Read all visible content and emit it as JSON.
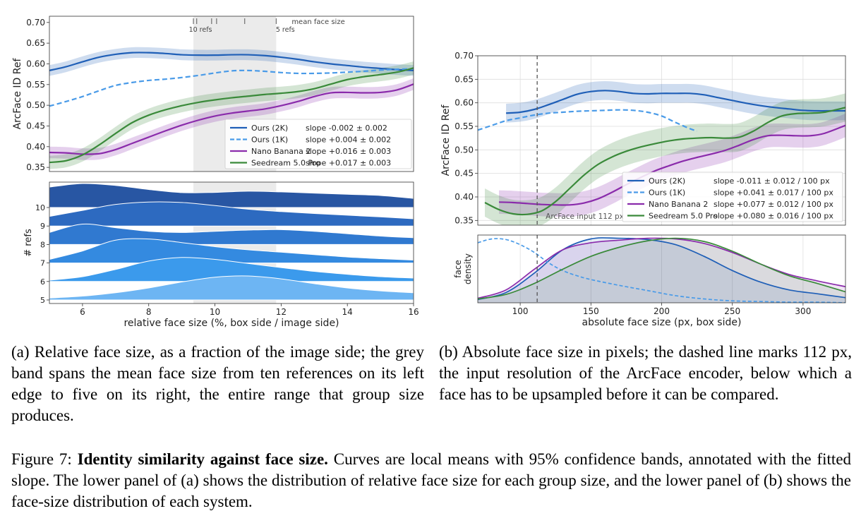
{
  "captions": {
    "a": "(a) Relative face size, as a fraction of the image side; the grey band spans the mean face size from ten references on its left edge to five on its right, the entire range that group size produces.",
    "b": "(b) Absolute face size in pixels; the dashed line marks 112 px, the input resolution of the ArcFace encoder, below which a face has to be upsampled before it can be compared.",
    "figure_label": "Figure 7:",
    "figure_title": "Identity similarity against face size.",
    "figure_text": "Curves are local means with 95% confidence bands, annotated with the fitted slope. The lower panel of (a) shows the distribution of relative face size for each group size, and the lower panel of (b) shows the face-size distribution of each system."
  },
  "chart_data": [
    {
      "id": "a-top",
      "type": "line",
      "ylabel": "ArcFace ID Ref",
      "xlim": [
        5,
        16
      ],
      "ylim": [
        0.34,
        0.715
      ],
      "yticks": [
        0.35,
        0.4,
        0.45,
        0.5,
        0.55,
        0.6,
        0.65,
        0.7
      ],
      "band": {
        "x": [
          9.35,
          11.85
        ],
        "color": "#ebebeb"
      },
      "mean_face_size": {
        "label": "mean face size",
        "left_label": "10 refs",
        "right_label": "5 refs",
        "ticks": [
          9.35,
          9.45,
          9.9,
          10.05,
          10.9,
          11.85
        ]
      },
      "legend_position": "lower-right",
      "series": [
        {
          "name": "Ours (2K)",
          "slope": "slope -0.002 ± 0.002",
          "color": "#1f5fb7",
          "dash": false,
          "ci": 0.013,
          "x": [
            5,
            5.5,
            6,
            6.5,
            7,
            7.5,
            8,
            8.5,
            9,
            9.5,
            10,
            10.5,
            11,
            11.5,
            12,
            12.5,
            13,
            13.5,
            14,
            14.5,
            15,
            15.5,
            16
          ],
          "y": [
            0.584,
            0.593,
            0.605,
            0.616,
            0.623,
            0.627,
            0.627,
            0.625,
            0.622,
            0.621,
            0.621,
            0.622,
            0.622,
            0.62,
            0.616,
            0.611,
            0.605,
            0.6,
            0.596,
            0.592,
            0.589,
            0.586,
            0.584
          ]
        },
        {
          "name": "Ours (1K)",
          "slope": "slope +0.004 ± 0.002",
          "color": "#4a9be8",
          "dash": true,
          "ci": 0,
          "x": [
            5,
            5.5,
            6,
            6.5,
            7,
            7.5,
            8,
            8.5,
            9,
            9.5,
            10,
            10.5,
            11,
            11.5,
            12,
            12.5,
            13,
            13.5,
            14,
            14.5,
            15,
            15.5,
            16
          ],
          "y": [
            0.498,
            0.509,
            0.521,
            0.535,
            0.548,
            0.555,
            0.56,
            0.563,
            0.567,
            0.572,
            0.578,
            0.583,
            0.584,
            0.582,
            0.579,
            0.577,
            0.577,
            0.578,
            0.58,
            0.582,
            0.585,
            0.587,
            0.588
          ]
        },
        {
          "name": "Nano Banana 2",
          "slope": "slope +0.016 ± 0.003",
          "color": "#8a2bab",
          "dash": false,
          "ci": 0.014,
          "x": [
            5,
            5.5,
            6,
            6.5,
            7,
            7.5,
            8,
            8.5,
            9,
            9.5,
            10,
            10.5,
            11,
            11.5,
            12,
            12.5,
            13,
            13.5,
            14,
            14.5,
            15,
            15.5,
            16
          ],
          "y": [
            0.386,
            0.385,
            0.382,
            0.383,
            0.393,
            0.408,
            0.423,
            0.438,
            0.452,
            0.464,
            0.474,
            0.481,
            0.486,
            0.491,
            0.499,
            0.509,
            0.521,
            0.53,
            0.531,
            0.53,
            0.531,
            0.537,
            0.551
          ]
        },
        {
          "name": "Seedream 5.0 Pro",
          "slope": "slope +0.017 ± 0.003",
          "color": "#3a8a3a",
          "dash": false,
          "ci": 0.016,
          "x": [
            5,
            5.5,
            6,
            6.5,
            7,
            7.5,
            8,
            8.5,
            9,
            9.5,
            10,
            10.5,
            11,
            11.5,
            12,
            12.5,
            13,
            13.5,
            14,
            14.5,
            15,
            15.5,
            16
          ],
          "y": [
            0.362,
            0.366,
            0.38,
            0.404,
            0.432,
            0.458,
            0.476,
            0.489,
            0.499,
            0.507,
            0.513,
            0.518,
            0.522,
            0.526,
            0.529,
            0.533,
            0.54,
            0.551,
            0.562,
            0.569,
            0.574,
            0.58,
            0.59
          ]
        }
      ]
    },
    {
      "id": "a-bottom",
      "type": "area",
      "ylabel": "# refs",
      "xlabel": "relative face size (%, box side / image side)",
      "xlim": [
        5,
        16
      ],
      "xticks": [
        6,
        8,
        10,
        12,
        14,
        16
      ],
      "band": {
        "x": [
          9.35,
          11.85
        ],
        "color": "#ebebeb"
      },
      "rows": [
        {
          "label": "10",
          "color": "#2856a3",
          "x": [
            5,
            6,
            7,
            8,
            9,
            10,
            11,
            12,
            13,
            14,
            15,
            16
          ],
          "y": [
            0.85,
            1.0,
            0.92,
            0.75,
            0.62,
            0.63,
            0.68,
            0.65,
            0.6,
            0.55,
            0.5,
            0.38
          ]
        },
        {
          "label": "9",
          "color": "#2d6ac0",
          "x": [
            5,
            6,
            7,
            8,
            9,
            10,
            11,
            12,
            13,
            14,
            15,
            16
          ],
          "y": [
            0.4,
            0.65,
            0.9,
            1.0,
            0.98,
            0.85,
            0.7,
            0.6,
            0.52,
            0.45,
            0.38,
            0.3
          ]
        },
        {
          "label": "8",
          "color": "#3079d0",
          "x": [
            5,
            6,
            7,
            8,
            9,
            10,
            11,
            12,
            13,
            14,
            15,
            16
          ],
          "y": [
            0.5,
            0.85,
            0.7,
            0.55,
            0.5,
            0.55,
            0.6,
            0.62,
            0.55,
            0.45,
            0.35,
            0.28
          ]
        },
        {
          "label": "7",
          "color": "#348ae0",
          "x": [
            5,
            6,
            7,
            8,
            9,
            10,
            11,
            12,
            13,
            14,
            15,
            16
          ],
          "y": [
            0.15,
            0.5,
            0.95,
            1.0,
            0.85,
            0.68,
            0.55,
            0.45,
            0.35,
            0.25,
            0.18,
            0.12
          ]
        },
        {
          "label": "6",
          "color": "#3b9aec",
          "x": [
            5,
            6,
            7,
            8,
            9,
            10,
            11,
            12,
            13,
            14,
            15,
            16
          ],
          "y": [
            0.05,
            0.2,
            0.5,
            0.85,
            1.0,
            0.92,
            0.75,
            0.58,
            0.42,
            0.3,
            0.2,
            0.14
          ]
        },
        {
          "label": "5",
          "color": "#6db5f3",
          "x": [
            5,
            6,
            7,
            8,
            9,
            10,
            11,
            12,
            13,
            14,
            15,
            16
          ],
          "y": [
            0.08,
            0.16,
            0.3,
            0.5,
            0.75,
            0.95,
            1.0,
            0.88,
            0.68,
            0.5,
            0.38,
            0.3
          ]
        }
      ]
    },
    {
      "id": "b-top",
      "type": "line",
      "ylabel": "ArcFace ID Ref",
      "xlim": [
        70,
        330
      ],
      "ylim": [
        0.34,
        0.7
      ],
      "yticks": [
        0.35,
        0.4,
        0.45,
        0.5,
        0.55,
        0.6,
        0.65,
        0.7
      ],
      "grid": true,
      "vline": {
        "x": 112,
        "label": "ArcFace input 112 px"
      },
      "legend_position": "lower-right",
      "series": [
        {
          "name": "Ours (2K)",
          "slope": "slope -0.011 ± 0.012 / 100 px",
          "color": "#1f5fb7",
          "dash": false,
          "ci": 0.02,
          "x": [
            90,
            100,
            110,
            120,
            130,
            140,
            150,
            160,
            170,
            180,
            190,
            200,
            210,
            220,
            230,
            240,
            250,
            260,
            270,
            280,
            290,
            300,
            310,
            320,
            330
          ],
          "y": [
            0.578,
            0.58,
            0.586,
            0.596,
            0.607,
            0.618,
            0.624,
            0.626,
            0.624,
            0.62,
            0.619,
            0.62,
            0.62,
            0.62,
            0.617,
            0.611,
            0.605,
            0.599,
            0.594,
            0.59,
            0.587,
            0.584,
            0.583,
            0.583,
            0.583
          ]
        },
        {
          "name": "Ours (1K)",
          "slope": "slope +0.041 ± 0.017 / 100 px",
          "color": "#4a9be8",
          "dash": true,
          "ci": 0,
          "x": [
            70,
            80,
            90,
            100,
            110,
            120,
            130,
            140,
            150,
            160,
            170,
            180,
            190,
            200,
            210,
            220,
            225
          ],
          "y": [
            0.542,
            0.552,
            0.562,
            0.568,
            0.574,
            0.578,
            0.58,
            0.582,
            0.583,
            0.584,
            0.585,
            0.584,
            0.58,
            0.572,
            0.558,
            0.545,
            0.54
          ]
        },
        {
          "name": "Nano Banana 2",
          "slope": "slope +0.077 ± 0.012 / 100 px",
          "color": "#8a2bab",
          "dash": false,
          "ci": 0.025,
          "x": [
            85,
            95,
            105,
            115,
            125,
            135,
            145,
            155,
            165,
            175,
            185,
            195,
            205,
            215,
            225,
            235,
            245,
            255,
            265,
            275,
            285,
            295,
            305,
            315,
            330
          ],
          "y": [
            0.389,
            0.388,
            0.386,
            0.384,
            0.383,
            0.383,
            0.387,
            0.396,
            0.41,
            0.426,
            0.441,
            0.455,
            0.466,
            0.476,
            0.484,
            0.491,
            0.499,
            0.51,
            0.522,
            0.53,
            0.531,
            0.53,
            0.53,
            0.535,
            0.552
          ]
        },
        {
          "name": "Seedream 5.0 Pro",
          "slope": "slope +0.080 ± 0.016 / 100 px",
          "color": "#3a8a3a",
          "dash": false,
          "ci": 0.03,
          "x": [
            75,
            85,
            95,
            105,
            115,
            125,
            135,
            145,
            155,
            165,
            175,
            185,
            195,
            205,
            215,
            225,
            235,
            245,
            255,
            265,
            275,
            285,
            295,
            305,
            315,
            330
          ],
          "y": [
            0.388,
            0.373,
            0.364,
            0.363,
            0.37,
            0.39,
            0.418,
            0.446,
            0.469,
            0.485,
            0.497,
            0.506,
            0.513,
            0.519,
            0.523,
            0.525,
            0.526,
            0.525,
            0.527,
            0.54,
            0.558,
            0.572,
            0.577,
            0.578,
            0.58,
            0.59
          ]
        }
      ]
    },
    {
      "id": "b-bottom",
      "type": "area",
      "ylabel": "face\ndensity",
      "xlabel": "absolute face size (px, box side)",
      "xlim": [
        70,
        330
      ],
      "xticks": [
        100,
        150,
        200,
        250,
        300
      ],
      "grid": true,
      "vline": {
        "x": 112
      },
      "series": [
        {
          "name": "Ours (2K)",
          "color": "#1f5fb7",
          "dash": false,
          "fill": true,
          "x": [
            70,
            90,
            110,
            130,
            150,
            170,
            190,
            210,
            230,
            250,
            270,
            290,
            310,
            330
          ],
          "y": [
            0.05,
            0.16,
            0.46,
            0.82,
            0.99,
            1.0,
            0.98,
            0.9,
            0.72,
            0.5,
            0.32,
            0.2,
            0.14,
            0.08
          ]
        },
        {
          "name": "Ours (1K)",
          "color": "#4a9be8",
          "dash": true,
          "fill": false,
          "x": [
            70,
            80,
            90,
            100,
            110,
            120,
            130,
            140,
            150,
            170,
            190,
            210,
            230,
            250,
            270,
            290,
            310,
            330
          ],
          "y": [
            0.93,
            0.99,
            0.98,
            0.9,
            0.78,
            0.62,
            0.5,
            0.42,
            0.36,
            0.27,
            0.19,
            0.11,
            0.06,
            0.03,
            0.02,
            0.01,
            0.01,
            0.0
          ]
        },
        {
          "name": "Nano Banana 2",
          "color": "#8a2bab",
          "dash": false,
          "fill": true,
          "x": [
            70,
            90,
            110,
            130,
            150,
            170,
            190,
            210,
            230,
            250,
            270,
            290,
            310,
            330
          ],
          "y": [
            0.07,
            0.2,
            0.52,
            0.82,
            0.93,
            0.97,
            1.0,
            0.99,
            0.92,
            0.78,
            0.6,
            0.44,
            0.34,
            0.25
          ]
        },
        {
          "name": "Seedream 5.0 Pro",
          "color": "#3a8a3a",
          "dash": false,
          "fill": true,
          "x": [
            70,
            90,
            110,
            130,
            150,
            170,
            190,
            210,
            230,
            250,
            270,
            290,
            310,
            330
          ],
          "y": [
            0.06,
            0.13,
            0.3,
            0.52,
            0.72,
            0.86,
            0.96,
            1.0,
            0.95,
            0.8,
            0.6,
            0.42,
            0.3,
            0.17
          ]
        }
      ]
    }
  ]
}
